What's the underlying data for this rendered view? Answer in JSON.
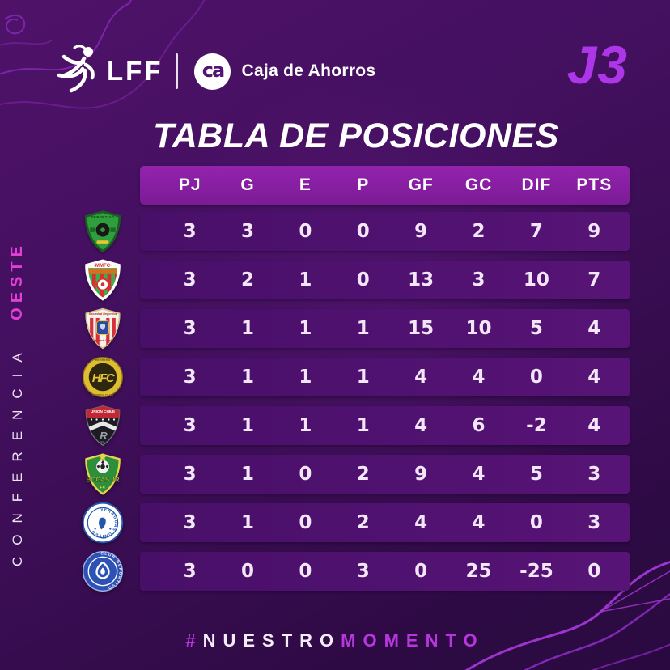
{
  "brand": {
    "lff_label": "LFF",
    "partner_monogram": "ca",
    "partner_name": "Caja de Ahorros",
    "jornada": "J3"
  },
  "title": "TABLA DE POSICIONES",
  "conference": {
    "word": "CONFERENCIA",
    "region": "OESTE"
  },
  "hashtag": {
    "hash": "#",
    "part_white": "NUESTRO",
    "part_accent": "MOMENTO"
  },
  "colors": {
    "background_top": "#4f1269",
    "background_bottom": "#2a0940",
    "header_bg": "#8a20a3",
    "row_bg": "#4e1170",
    "accent_magenta": "#ad36e8",
    "accent_pink": "#e03ed4",
    "text_white": "#ffffff"
  },
  "chart_data": {
    "type": "table",
    "title": "TABLA DE POSICIONES",
    "columns": [
      "PJ",
      "G",
      "E",
      "P",
      "GF",
      "GC",
      "DIF",
      "PTS"
    ],
    "rows": [
      {
        "team_logo": "deportivo-green-shield",
        "logo_text": "DEPORTIVO",
        "values": [
          3,
          3,
          0,
          0,
          9,
          2,
          7,
          9
        ]
      },
      {
        "team_logo": "mmfc-shield",
        "logo_text": "MMFC",
        "values": [
          3,
          2,
          1,
          0,
          13,
          3,
          10,
          7
        ]
      },
      {
        "team_logo": "sd-panama-oeste-shield",
        "logo_text": "Sociedad Deportiva Panamá Oeste",
        "values": [
          3,
          1,
          1,
          1,
          15,
          10,
          5,
          4
        ]
      },
      {
        "team_logo": "hfc-badge",
        "logo_text": "HFC",
        "values": [
          3,
          1,
          1,
          1,
          4,
          4,
          0,
          4
        ]
      },
      {
        "team_logo": "union-chile-shield",
        "logo_text": "UNION CHILE",
        "values": [
          3,
          1,
          1,
          1,
          4,
          6,
          -2,
          4
        ]
      },
      {
        "team_logo": "bocas-jr-shield",
        "logo_text": "BOCAS JR",
        "values": [
          3,
          1,
          0,
          2,
          9,
          4,
          5,
          3
        ]
      },
      {
        "team_logo": "veraguas-united-badge",
        "logo_text": "VERAGUAS UNITED F.C.",
        "values": [
          3,
          1,
          0,
          2,
          4,
          4,
          0,
          3
        ]
      },
      {
        "team_logo": "club-deportivo-badge",
        "logo_text": "CLUB DEPORTIVO",
        "values": [
          3,
          0,
          0,
          3,
          0,
          25,
          -25,
          0
        ]
      }
    ]
  }
}
